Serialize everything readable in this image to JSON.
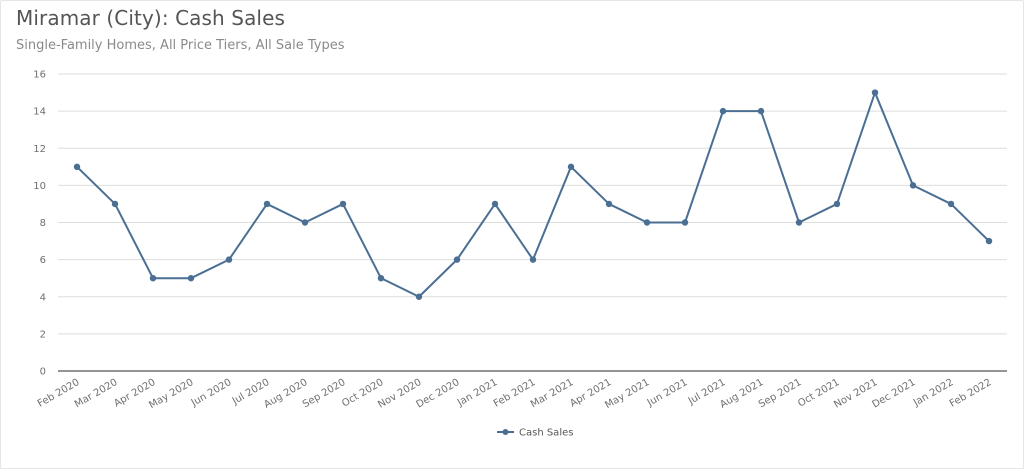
{
  "header": {
    "title": "Miramar (City): Cash Sales",
    "subtitle": "Single-Family Homes, All Price Tiers, All Sale Types"
  },
  "colors": {
    "series": "#4a6f93",
    "grid": "#dedede",
    "axis": "#555555"
  },
  "chart_data": {
    "type": "line",
    "title": "Miramar (City): Cash Sales",
    "subtitle": "Single-Family Homes, All Price Tiers, All Sale Types",
    "xlabel": "",
    "ylabel": "",
    "ylim": [
      0,
      16
    ],
    "yticks": [
      0,
      2,
      4,
      6,
      8,
      10,
      12,
      14,
      16
    ],
    "grid": true,
    "legend_position": "bottom",
    "categories": [
      "Feb 2020",
      "Mar 2020",
      "Apr 2020",
      "May 2020",
      "Jun 2020",
      "Jul 2020",
      "Aug 2020",
      "Sep 2020",
      "Oct 2020",
      "Nov 2020",
      "Dec 2020",
      "Jan 2021",
      "Feb 2021",
      "Mar 2021",
      "Apr 2021",
      "May 2021",
      "Jun 2021",
      "Jul 2021",
      "Aug 2021",
      "Sep 2021",
      "Oct 2021",
      "Nov 2021",
      "Dec 2021",
      "Jan 2022",
      "Feb 2022"
    ],
    "series": [
      {
        "name": "Cash Sales",
        "values": [
          11,
          9,
          5,
          5,
          6,
          9,
          8,
          9,
          5,
          4,
          6,
          9,
          6,
          11,
          9,
          8,
          8,
          14,
          14,
          8,
          9,
          15,
          10,
          9,
          7
        ]
      }
    ]
  }
}
